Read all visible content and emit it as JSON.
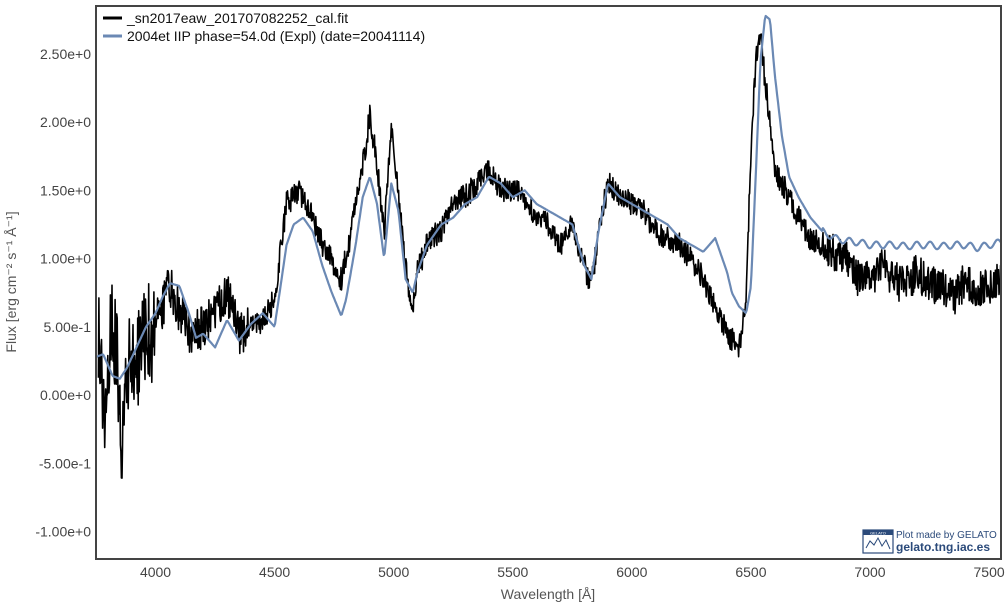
{
  "chart_data": {
    "type": "line",
    "title": "",
    "xlabel": "Wavelength [Å]",
    "ylabel": "Flux [erg cm⁻² s⁻¹ Å⁻¹]",
    "xlim": [
      3750,
      7550
    ],
    "ylim": [
      -1.2,
      2.85
    ],
    "x_ticks": [
      4000,
      4500,
      5000,
      5500,
      6000,
      6500,
      7000,
      7500
    ],
    "y_ticks": [
      -1.0,
      -0.5,
      0.0,
      0.5,
      1.0,
      1.5,
      2.0,
      2.5
    ],
    "y_tick_labels": [
      "-1.00e+0",
      "-5.00e-1",
      "0.00e+0",
      "5.00e-1",
      "1.00e+0",
      "1.50e+0",
      "2.00e+0",
      "2.50e+0"
    ],
    "x_tick_labels": [
      "4000",
      "4500",
      "5000",
      "5500",
      "6000",
      "6500",
      "7000",
      "7500"
    ],
    "grid": false,
    "legend": "top-left",
    "series": [
      {
        "name": "_sn2017eaw_201707082252_cal.fit",
        "color": "#000000",
        "noisy": true,
        "x": [
          3760,
          3780,
          3800,
          3820,
          3840,
          3860,
          3880,
          3900,
          3920,
          3940,
          3960,
          3980,
          4000,
          4030,
          4060,
          4100,
          4150,
          4200,
          4250,
          4300,
          4350,
          4400,
          4450,
          4500,
          4550,
          4600,
          4650,
          4700,
          4750,
          4780,
          4810,
          4850,
          4880,
          4900,
          4930,
          4960,
          4990,
          5020,
          5050,
          5080,
          5100,
          5150,
          5200,
          5250,
          5300,
          5350,
          5400,
          5450,
          5500,
          5550,
          5600,
          5650,
          5700,
          5750,
          5800,
          5830,
          5860,
          5900,
          5950,
          6000,
          6050,
          6100,
          6150,
          6200,
          6250,
          6300,
          6350,
          6400,
          6450,
          6480,
          6500,
          6520,
          6540,
          6560,
          6580,
          6600,
          6630,
          6660,
          6700,
          6750,
          6800,
          6850,
          6900,
          6950,
          7000,
          7050,
          7100,
          7150,
          7200,
          7250,
          7300,
          7350,
          7400,
          7450,
          7500,
          7550
        ],
        "y": [
          0.5,
          -0.1,
          0.2,
          0.5,
          0.3,
          -0.4,
          0.1,
          0.3,
          0.15,
          0.4,
          0.5,
          0.45,
          0.55,
          0.65,
          0.8,
          0.6,
          0.45,
          0.5,
          0.6,
          0.75,
          0.45,
          0.5,
          0.55,
          0.7,
          1.4,
          1.5,
          1.35,
          1.1,
          0.95,
          0.85,
          1.1,
          1.5,
          1.8,
          2.05,
          1.7,
          1.2,
          2.0,
          1.45,
          0.95,
          0.6,
          0.9,
          1.15,
          1.2,
          1.45,
          1.45,
          1.55,
          1.65,
          1.5,
          1.5,
          1.45,
          1.3,
          1.25,
          1.1,
          1.25,
          0.95,
          0.8,
          1.2,
          1.55,
          1.45,
          1.4,
          1.35,
          1.2,
          1.15,
          1.1,
          1.0,
          0.85,
          0.65,
          0.45,
          0.35,
          0.7,
          1.8,
          2.45,
          2.6,
          2.3,
          2.0,
          1.65,
          1.55,
          1.45,
          1.3,
          1.15,
          1.1,
          1.05,
          1.0,
          0.85,
          0.85,
          0.95,
          0.85,
          0.8,
          0.9,
          0.8,
          0.8,
          0.7,
          0.85,
          0.75,
          0.8,
          0.85
        ]
      },
      {
        "name": "2004et  IIP  phase=54.0d (Expl)  (date=20041114)",
        "color": "#6b89b4",
        "noisy": false,
        "x": [
          3750,
          3780,
          3800,
          3820,
          3850,
          3880,
          3920,
          3960,
          4000,
          4030,
          4060,
          4100,
          4140,
          4170,
          4200,
          4250,
          4300,
          4350,
          4400,
          4450,
          4500,
          4550,
          4580,
          4620,
          4660,
          4700,
          4740,
          4780,
          4800,
          4840,
          4870,
          4900,
          4930,
          4960,
          4990,
          5020,
          5050,
          5080,
          5100,
          5140,
          5200,
          5250,
          5300,
          5350,
          5400,
          5450,
          5500,
          5550,
          5600,
          5650,
          5700,
          5750,
          5800,
          5830,
          5860,
          5900,
          5950,
          6000,
          6050,
          6100,
          6150,
          6200,
          6250,
          6300,
          6350,
          6400,
          6420,
          6450,
          6480,
          6500,
          6520,
          6540,
          6560,
          6580,
          6600,
          6630,
          6660,
          6700,
          6750,
          6800,
          6850,
          6900,
          6950,
          7000,
          7050,
          7100,
          7150,
          7200,
          7250,
          7300,
          7350,
          7400,
          7450,
          7500,
          7550
        ],
        "y": [
          0.28,
          0.3,
          0.22,
          0.14,
          0.12,
          0.2,
          0.35,
          0.5,
          0.6,
          0.72,
          0.82,
          0.8,
          0.6,
          0.42,
          0.45,
          0.35,
          0.55,
          0.4,
          0.52,
          0.6,
          0.5,
          1.1,
          1.25,
          1.3,
          1.2,
          0.95,
          0.75,
          0.58,
          0.7,
          1.1,
          1.45,
          1.6,
          1.4,
          1.0,
          1.55,
          1.35,
          0.85,
          0.75,
          0.9,
          1.1,
          1.25,
          1.3,
          1.4,
          1.45,
          1.6,
          1.55,
          1.45,
          1.5,
          1.4,
          1.35,
          1.3,
          1.25,
          0.95,
          0.85,
          1.2,
          1.55,
          1.45,
          1.4,
          1.35,
          1.3,
          1.25,
          1.15,
          1.1,
          1.05,
          1.15,
          0.9,
          0.75,
          0.65,
          0.6,
          0.8,
          1.6,
          2.45,
          2.78,
          2.75,
          2.35,
          1.9,
          1.6,
          1.45,
          1.3,
          1.2,
          1.15,
          1.13,
          1.12,
          1.1,
          1.1,
          1.1,
          1.09,
          1.1,
          1.1,
          1.09,
          1.1,
          1.1,
          1.08,
          1.1,
          1.12
        ]
      }
    ]
  },
  "badge": {
    "line1": "Plot made by GELATO",
    "line2": "gelato.tng.iac.es",
    "logo_text": "GELATO"
  }
}
